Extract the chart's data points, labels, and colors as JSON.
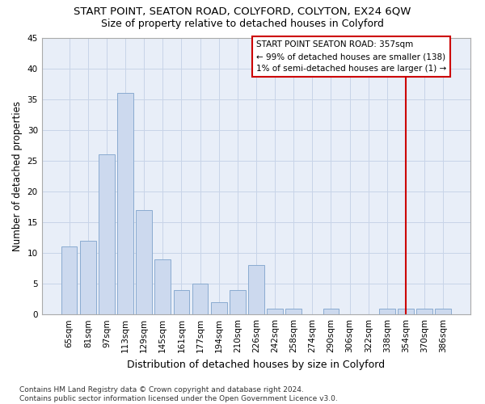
{
  "title": "START POINT, SEATON ROAD, COLYFORD, COLYTON, EX24 6QW",
  "subtitle": "Size of property relative to detached houses in Colyford",
  "xlabel": "Distribution of detached houses by size in Colyford",
  "ylabel": "Number of detached properties",
  "categories": [
    "65sqm",
    "81sqm",
    "97sqm",
    "113sqm",
    "129sqm",
    "145sqm",
    "161sqm",
    "177sqm",
    "194sqm",
    "210sqm",
    "226sqm",
    "242sqm",
    "258sqm",
    "274sqm",
    "290sqm",
    "306sqm",
    "322sqm",
    "338sqm",
    "354sqm",
    "370sqm",
    "386sqm"
  ],
  "values": [
    11,
    12,
    26,
    36,
    17,
    9,
    4,
    5,
    2,
    4,
    8,
    1,
    1,
    0,
    1,
    0,
    0,
    1,
    1,
    1,
    1
  ],
  "bar_color": "#ccd9ee",
  "bar_edge_color": "#8aabd0",
  "bar_linewidth": 0.7,
  "grid_color": "#c8d4e8",
  "bg_color": "#e8eef8",
  "red_line_x": 18.0,
  "red_line_color": "#cc0000",
  "annotation_text": "START POINT SEATON ROAD: 357sqm\n← 99% of detached houses are smaller (138)\n1% of semi-detached houses are larger (1) →",
  "annotation_box_color": "#ffffff",
  "annotation_box_edge": "#cc0000",
  "ylim": [
    0,
    45
  ],
  "yticks": [
    0,
    5,
    10,
    15,
    20,
    25,
    30,
    35,
    40,
    45
  ],
  "footer": "Contains HM Land Registry data © Crown copyright and database right 2024.\nContains public sector information licensed under the Open Government Licence v3.0.",
  "title_fontsize": 9.5,
  "subtitle_fontsize": 9,
  "xlabel_fontsize": 9,
  "ylabel_fontsize": 8.5,
  "tick_fontsize": 7.5,
  "annotation_fontsize": 7.5,
  "footer_fontsize": 6.5
}
